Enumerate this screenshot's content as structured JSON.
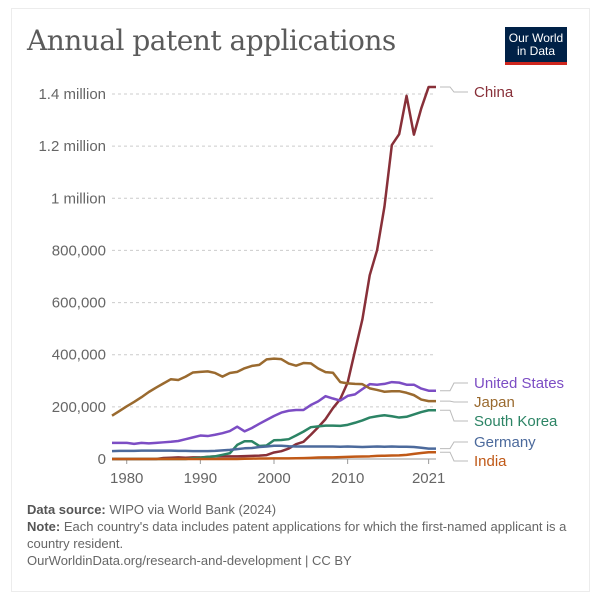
{
  "header": {
    "title": "Annual patent applications",
    "logo_line1": "Our World",
    "logo_line2": "in Data"
  },
  "footer": {
    "source_label": "Data source:",
    "source_text": "WIPO via World Bank (2024)",
    "note_label": "Note:",
    "note_text": "Each country's data includes patent applications for which the first-named applicant is a country resident.",
    "url_text": "OurWorldinData.org/research-and-development | CC BY"
  },
  "chart_data": {
    "type": "line",
    "title": "Annual patent applications",
    "xlabel": "",
    "ylabel": "",
    "xlim": [
      1978,
      2022
    ],
    "ylim": [
      0,
      1450000
    ],
    "grid": true,
    "x_ticks": [
      1980,
      1990,
      2000,
      2010,
      2021
    ],
    "x_tick_labels": [
      "1980",
      "1990",
      "2000",
      "2010",
      "2021"
    ],
    "y_ticks": [
      0,
      200000,
      400000,
      600000,
      800000,
      1000000,
      1200000,
      1400000
    ],
    "y_tick_labels": [
      "0",
      "200,000",
      "400,000",
      "600,000",
      "800,000",
      "1 million",
      "1.2 million",
      "1.4 million"
    ],
    "legend": "right-end-labels",
    "x": [
      1978,
      1979,
      1980,
      1981,
      1982,
      1983,
      1984,
      1985,
      1986,
      1987,
      1988,
      1989,
      1990,
      1991,
      1992,
      1993,
      1994,
      1995,
      1996,
      1997,
      1998,
      1999,
      2000,
      2001,
      2002,
      2003,
      2004,
      2005,
      2006,
      2007,
      2008,
      2009,
      2010,
      2011,
      2012,
      2013,
      2014,
      2015,
      2016,
      2017,
      2018,
      2019,
      2020,
      2021,
      2022
    ],
    "series": [
      {
        "name": "China",
        "color": "#883039",
        "values": [
          0,
          0,
          0,
          0,
          0,
          0,
          0,
          4000,
          5000,
          6000,
          5000,
          6000,
          6000,
          8000,
          10000,
          10000,
          10000,
          10000,
          11000,
          12000,
          13000,
          15000,
          25000,
          30000,
          40000,
          57000,
          66000,
          93000,
          122000,
          153000,
          195000,
          230000,
          293000,
          415000,
          535000,
          705000,
          801000,
          968000,
          1204000,
          1246000,
          1393000,
          1244000,
          1345000,
          1427000,
          1427000
        ]
      },
      {
        "name": "United States",
        "color": "#7c4dc4",
        "values": [
          62000,
          62000,
          62000,
          58000,
          62000,
          60000,
          62000,
          64000,
          66000,
          69000,
          76000,
          83000,
          90000,
          88000,
          93000,
          99000,
          107000,
          124000,
          106000,
          119000,
          135000,
          150000,
          165000,
          178000,
          185000,
          188000,
          188000,
          207000,
          221000,
          241000,
          232000,
          224000,
          242000,
          248000,
          268000,
          287000,
          285000,
          288000,
          295000,
          293000,
          285000,
          285000,
          270000,
          262000,
          262000
        ]
      },
      {
        "name": "Japan",
        "color": "#9a6a2f",
        "values": [
          166000,
          184000,
          202000,
          219000,
          237000,
          257000,
          274000,
          290000,
          306000,
          303000,
          316000,
          332000,
          334000,
          336000,
          330000,
          316000,
          330000,
          334000,
          348000,
          357000,
          361000,
          382000,
          385000,
          383000,
          366000,
          358000,
          368000,
          367000,
          347000,
          333000,
          331000,
          295000,
          290000,
          288000,
          287000,
          271000,
          265000,
          258000,
          260000,
          260000,
          254000,
          245000,
          228000,
          222000,
          222000
        ]
      },
      {
        "name": "South Korea",
        "color": "#2c8465",
        "values": [
          0,
          0,
          0,
          0,
          0,
          0,
          0,
          0,
          0,
          0,
          0,
          3000,
          5000,
          8000,
          10000,
          16000,
          22000,
          54000,
          68000,
          68000,
          50000,
          52000,
          72000,
          73000,
          76000,
          90000,
          105000,
          122000,
          125000,
          128000,
          128000,
          127000,
          131000,
          139000,
          148000,
          159000,
          164000,
          168000,
          164000,
          159000,
          162000,
          171000,
          180000,
          187000,
          187000
        ]
      },
      {
        "name": "Germany",
        "color": "#4c6a9c",
        "values": [
          30000,
          31000,
          31000,
          31000,
          32000,
          32000,
          32000,
          32000,
          32000,
          31000,
          31000,
          30000,
          30000,
          30000,
          31000,
          33000,
          35000,
          38000,
          41000,
          42000,
          46000,
          48000,
          51000,
          51000,
          49000,
          48000,
          48000,
          48000,
          48000,
          48000,
          48000,
          47000,
          48000,
          47000,
          46000,
          47000,
          48000,
          47000,
          48000,
          47000,
          47000,
          46000,
          43000,
          40000,
          40000
        ]
      },
      {
        "name": "India",
        "color": "#c05917",
        "values": [
          0,
          0,
          0,
          0,
          0,
          0,
          0,
          0,
          0,
          0,
          0,
          0,
          0,
          0,
          0,
          0,
          0,
          0,
          1000,
          1500,
          2000,
          2000,
          2200,
          2400,
          2600,
          3000,
          3500,
          4500,
          5600,
          6000,
          6000,
          7000,
          8000,
          8900,
          9500,
          10300,
          12100,
          12600,
          13200,
          14000,
          16000,
          19500,
          23000,
          26000,
          26000
        ]
      }
    ]
  }
}
